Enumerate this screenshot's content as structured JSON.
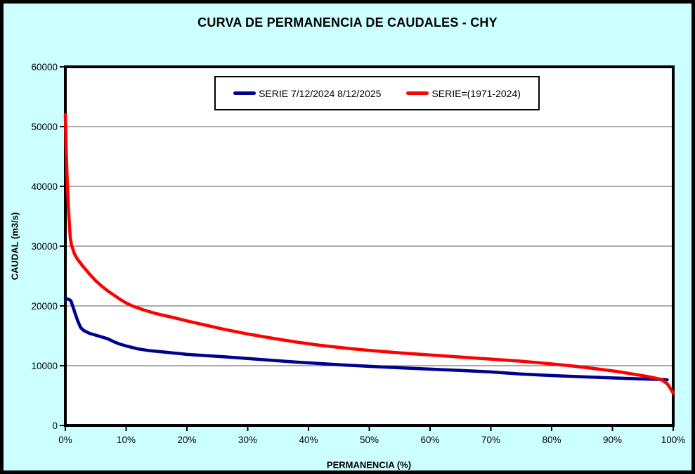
{
  "title": "CURVA DE PERMANENCIA DE CAUDALES - CHY",
  "colors": {
    "background": "#CCFFFF",
    "plot_background": "#FFFFFF",
    "axis_border": "#000000",
    "gridline": "#595959",
    "series_blue": "#000090",
    "series_red": "#FF0000"
  },
  "chart_data": {
    "type": "line",
    "title": "CURVA DE PERMANENCIA DE CAUDALES - CHY",
    "xlabel": "PERMANENCIA (%)",
    "ylabel": "CAUDAL (m3/s)",
    "xlim": [
      0,
      100
    ],
    "ylim": [
      0,
      60000
    ],
    "x_tick_values": [
      0,
      10,
      20,
      30,
      40,
      50,
      60,
      70,
      80,
      90,
      100
    ],
    "x_tick_labels": [
      "0%",
      "10%",
      "20%",
      "30%",
      "40%",
      "50%",
      "60%",
      "70%",
      "80%",
      "90%",
      "100%"
    ],
    "y_tick_values": [
      0,
      10000,
      20000,
      30000,
      40000,
      50000,
      60000
    ],
    "y_tick_labels": [
      "0",
      "10000",
      "20000",
      "30000",
      "40000",
      "50000",
      "60000"
    ],
    "grid": "horizontal",
    "legend_position": "top-center",
    "series": [
      {
        "name": "SERIE 7/12/2024 8/12/2025",
        "color": "#000090",
        "points": [
          [
            0,
            21300
          ],
          [
            0.5,
            21100
          ],
          [
            0.9,
            20900
          ],
          [
            1.2,
            20000
          ],
          [
            1.6,
            18800
          ],
          [
            2,
            17600
          ],
          [
            2.5,
            16400
          ],
          [
            3,
            15900
          ],
          [
            4,
            15400
          ],
          [
            5,
            15100
          ],
          [
            6,
            14800
          ],
          [
            7,
            14500
          ],
          [
            8,
            14000
          ],
          [
            9,
            13600
          ],
          [
            10,
            13300
          ],
          [
            12,
            12800
          ],
          [
            14,
            12500
          ],
          [
            16,
            12300
          ],
          [
            18,
            12100
          ],
          [
            20,
            11900
          ],
          [
            23,
            11700
          ],
          [
            26,
            11500
          ],
          [
            30,
            11200
          ],
          [
            34,
            10900
          ],
          [
            38,
            10600
          ],
          [
            42,
            10350
          ],
          [
            46,
            10100
          ],
          [
            50,
            9900
          ],
          [
            55,
            9650
          ],
          [
            60,
            9420
          ],
          [
            65,
            9200
          ],
          [
            70,
            8950
          ],
          [
            75,
            8600
          ],
          [
            80,
            8350
          ],
          [
            85,
            8150
          ],
          [
            90,
            7950
          ],
          [
            95,
            7780
          ],
          [
            98,
            7690
          ],
          [
            99,
            7650
          ]
        ]
      },
      {
        "name": "SERIE=(1971-2024)",
        "color": "#FF0000",
        "points": [
          [
            0,
            52000
          ],
          [
            0.1,
            47000
          ],
          [
            0.3,
            41000
          ],
          [
            0.5,
            36500
          ],
          [
            0.8,
            31500
          ],
          [
            1,
            30200
          ],
          [
            1.5,
            28700
          ],
          [
            2,
            27800
          ],
          [
            3,
            26500
          ],
          [
            4,
            25300
          ],
          [
            5,
            24200
          ],
          [
            6,
            23300
          ],
          [
            7,
            22500
          ],
          [
            8,
            21800
          ],
          [
            9,
            21100
          ],
          [
            10,
            20500
          ],
          [
            11,
            20000
          ],
          [
            13,
            19300
          ],
          [
            15,
            18700
          ],
          [
            18,
            18000
          ],
          [
            20,
            17500
          ],
          [
            23,
            16800
          ],
          [
            26,
            16100
          ],
          [
            30,
            15300
          ],
          [
            34,
            14600
          ],
          [
            38,
            13950
          ],
          [
            42,
            13400
          ],
          [
            46,
            12950
          ],
          [
            50,
            12550
          ],
          [
            55,
            12150
          ],
          [
            60,
            11800
          ],
          [
            65,
            11450
          ],
          [
            70,
            11100
          ],
          [
            75,
            10750
          ],
          [
            80,
            10300
          ],
          [
            84,
            9900
          ],
          [
            88,
            9400
          ],
          [
            91,
            9000
          ],
          [
            94,
            8500
          ],
          [
            96,
            8150
          ],
          [
            98,
            7700
          ],
          [
            99,
            7000
          ],
          [
            99.6,
            6100
          ],
          [
            100,
            5400
          ]
        ]
      }
    ]
  }
}
